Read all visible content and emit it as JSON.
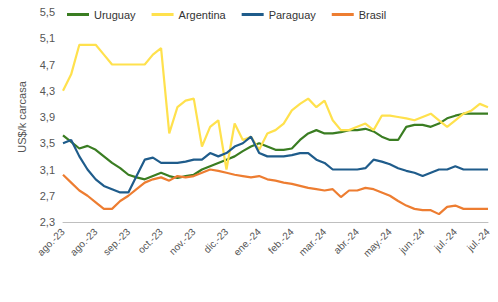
{
  "chart_data": {
    "type": "line",
    "y_label": "US$/k carcasa",
    "categories": [
      "ago.-23",
      null,
      null,
      null,
      "ago.-23",
      null,
      null,
      null,
      "sep.-23",
      null,
      null,
      null,
      "oct.-23",
      null,
      null,
      null,
      "nov.-23",
      null,
      null,
      null,
      "dic.-23",
      null,
      null,
      null,
      "ene.-24",
      null,
      null,
      null,
      "feb.-24",
      null,
      null,
      null,
      "mar.-24",
      null,
      null,
      null,
      "abr.-24",
      null,
      null,
      null,
      "may.-24",
      null,
      null,
      null,
      "jun.-24",
      null,
      null,
      null,
      "jul.-24",
      null,
      null,
      null,
      "jul.-24"
    ],
    "series": [
      {
        "name": "Uruguay",
        "color": "#3a7d22",
        "values": [
          3.62,
          3.52,
          3.42,
          3.46,
          3.4,
          3.3,
          3.2,
          3.12,
          3.02,
          2.98,
          2.95,
          3.0,
          3.05,
          3.0,
          2.97,
          3.0,
          3.02,
          3.1,
          3.15,
          3.2,
          3.25,
          3.3,
          3.38,
          3.45,
          3.5,
          3.45,
          3.4,
          3.4,
          3.42,
          3.55,
          3.65,
          3.7,
          3.65,
          3.65,
          3.67,
          3.7,
          3.7,
          3.72,
          3.68,
          3.6,
          3.55,
          3.55,
          3.75,
          3.78,
          3.78,
          3.75,
          3.8,
          3.88,
          3.92,
          3.95,
          3.95,
          3.95,
          3.95
        ]
      },
      {
        "name": "Argentina",
        "color": "#ffe14d",
        "values": [
          4.3,
          4.55,
          5.0,
          5.0,
          5.0,
          4.85,
          4.7,
          4.7,
          4.7,
          4.7,
          4.7,
          4.85,
          4.95,
          3.65,
          4.05,
          4.15,
          4.18,
          3.45,
          3.75,
          3.85,
          3.1,
          3.8,
          3.55,
          3.6,
          3.4,
          3.65,
          3.7,
          3.8,
          4.0,
          4.1,
          4.18,
          4.05,
          4.15,
          3.85,
          3.7,
          3.7,
          3.75,
          3.8,
          3.7,
          3.92,
          3.92,
          3.9,
          3.88,
          3.85,
          3.9,
          3.95,
          3.85,
          3.75,
          3.85,
          3.95,
          4.0,
          4.1,
          4.05
        ]
      },
      {
        "name": "Paraguay",
        "color": "#1f5c8b",
        "values": [
          3.5,
          3.55,
          3.3,
          3.1,
          2.95,
          2.85,
          2.8,
          2.75,
          2.75,
          3.0,
          3.25,
          3.28,
          3.2,
          3.2,
          3.2,
          3.22,
          3.25,
          3.25,
          3.35,
          3.3,
          3.35,
          3.45,
          3.5,
          3.6,
          3.35,
          3.3,
          3.3,
          3.3,
          3.32,
          3.35,
          3.35,
          3.25,
          3.2,
          3.1,
          3.1,
          3.1,
          3.1,
          3.12,
          3.25,
          3.22,
          3.18,
          3.12,
          3.08,
          3.05,
          3.0,
          3.05,
          3.1,
          3.1,
          3.15,
          3.1,
          3.1,
          3.1,
          3.1
        ]
      },
      {
        "name": "Brasil",
        "color": "#ed7d31",
        "values": [
          3.02,
          2.9,
          2.78,
          2.7,
          2.6,
          2.5,
          2.5,
          2.62,
          2.7,
          2.8,
          2.9,
          2.95,
          2.98,
          2.93,
          3.0,
          2.98,
          3.0,
          3.05,
          3.1,
          3.08,
          3.05,
          3.02,
          3.0,
          2.98,
          3.0,
          2.95,
          2.93,
          2.9,
          2.88,
          2.85,
          2.82,
          2.8,
          2.78,
          2.8,
          2.68,
          2.78,
          2.78,
          2.82,
          2.8,
          2.75,
          2.7,
          2.62,
          2.55,
          2.5,
          2.48,
          2.48,
          2.42,
          2.53,
          2.55,
          2.5,
          2.5,
          2.5,
          2.5
        ]
      }
    ],
    "ylim": [
      2.3,
      5.5
    ],
    "yticks": [
      {
        "value": 2.3,
        "label": "2,3"
      },
      {
        "value": 2.7,
        "label": "2,7"
      },
      {
        "value": 3.1,
        "label": "3,1"
      },
      {
        "value": 3.5,
        "label": "3,5"
      },
      {
        "value": 3.9,
        "label": "3,9"
      },
      {
        "value": 4.3,
        "label": "4,3"
      },
      {
        "value": 4.7,
        "label": "4,7"
      },
      {
        "value": 5.1,
        "label": "5,1"
      },
      {
        "value": 5.5,
        "label": "5,5"
      }
    ],
    "grid": false,
    "legend": "top-left"
  }
}
